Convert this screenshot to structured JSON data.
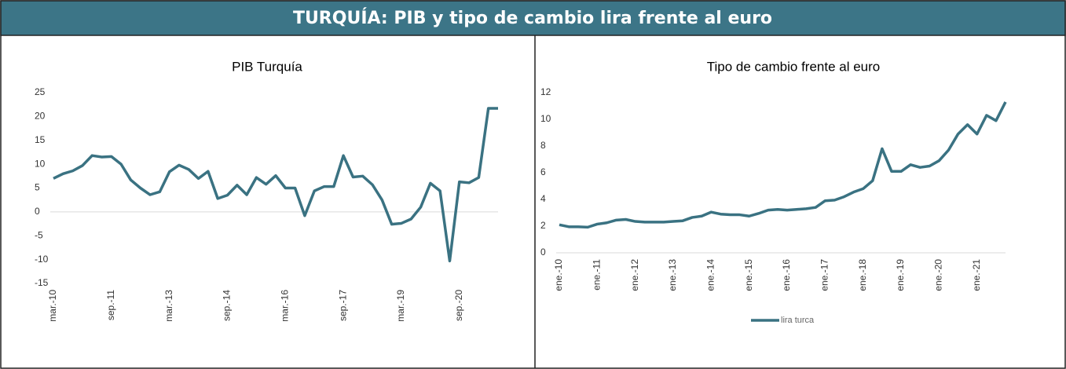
{
  "header": {
    "title": "TURQUÍA: PIB y tipo de cambio lira frente al euro"
  },
  "chart_data": [
    {
      "type": "line",
      "title": "PIB Turquía",
      "categories": [
        "mar.-10",
        null,
        null,
        null,
        null,
        null,
        "sep.-11",
        null,
        null,
        null,
        null,
        null,
        "mar.-13",
        null,
        null,
        null,
        null,
        null,
        "sep.-14",
        null,
        null,
        null,
        null,
        null,
        "mar.-16",
        null,
        null,
        null,
        null,
        null,
        "sep.-17",
        null,
        null,
        null,
        null,
        null,
        "mar.-19",
        null,
        null,
        null,
        null,
        null,
        "sep.-20",
        null,
        null,
        null,
        null
      ],
      "values": [
        7,
        8,
        8.6,
        9.7,
        11.8,
        11.5,
        11.6,
        10,
        6.7,
        5,
        3.6,
        4.2,
        8.4,
        9.8,
        8.9,
        7,
        8.5,
        2.8,
        3.5,
        5.6,
        3.6,
        7.2,
        5.8,
        7.6,
        5,
        5,
        -0.8,
        4.4,
        5.3,
        5.3,
        11.8,
        7.3,
        7.5,
        5.7,
        2.5,
        -2.6,
        -2.4,
        -1.5,
        1,
        6,
        4.4,
        -10.3,
        6.3,
        6.1,
        7.2,
        21.7,
        21.7
      ],
      "color": "#3a7282",
      "ylim": [
        -15,
        25
      ],
      "yticks": [
        -15,
        -10,
        -5,
        0,
        5,
        10,
        15,
        20,
        25
      ],
      "grid": false
    },
    {
      "type": "line",
      "title": "Tipo de cambio frente al euro",
      "categories": [
        "ene.-10",
        null,
        null,
        null,
        "ene.-11",
        null,
        null,
        null,
        "ene.-12",
        null,
        null,
        null,
        "ene.-13",
        null,
        null,
        null,
        "ene.-14",
        null,
        null,
        null,
        "ene.-15",
        null,
        null,
        null,
        "ene.-16",
        null,
        null,
        null,
        "ene.-17",
        null,
        null,
        null,
        "ene.-18",
        null,
        null,
        null,
        "ene.-19",
        null,
        null,
        null,
        "ene.-20",
        null,
        null,
        null,
        "ene.-21",
        null,
        null,
        null
      ],
      "series": [
        {
          "name": "lira turca",
          "color": "#3a7282",
          "values": [
            2.1,
            1.95,
            1.95,
            1.92,
            2.15,
            2.25,
            2.45,
            2.5,
            2.35,
            2.3,
            2.3,
            2.3,
            2.35,
            2.4,
            2.65,
            2.75,
            3.05,
            2.9,
            2.85,
            2.85,
            2.75,
            2.95,
            3.2,
            3.25,
            3.2,
            3.25,
            3.3,
            3.4,
            3.9,
            3.95,
            4.2,
            4.55,
            4.8,
            5.4,
            7.8,
            6.1,
            6.1,
            6.6,
            6.4,
            6.5,
            6.9,
            7.7,
            8.9,
            9.6,
            8.9,
            10.3,
            9.9,
            11.3
          ]
        }
      ],
      "ylim": [
        0,
        12
      ],
      "yticks": [
        0,
        2,
        4,
        6,
        8,
        10,
        12
      ],
      "grid": false,
      "legend": "bottom"
    }
  ]
}
